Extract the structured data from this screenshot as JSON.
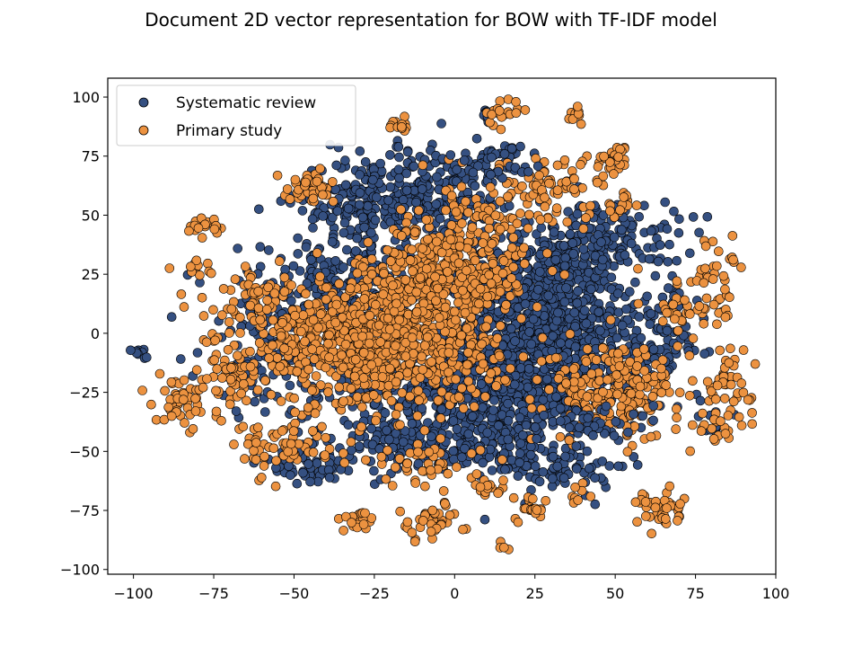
{
  "chart_data": {
    "type": "scatter",
    "title": "Document 2D vector representation for BOW with TF-IDF model",
    "xlabel": "",
    "ylabel": "",
    "xlim": [
      -108,
      100
    ],
    "ylim": [
      -102,
      108
    ],
    "xticks": [
      -100,
      -75,
      -50,
      -25,
      0,
      25,
      50,
      75,
      100
    ],
    "yticks": [
      -100,
      -75,
      -50,
      -25,
      0,
      25,
      50,
      75,
      100
    ],
    "grid": false,
    "legend_position": "upper-left",
    "series": [
      {
        "name": "Systematic review",
        "color": "#355081",
        "clusters": [
          {
            "cx": 28,
            "cy": 5,
            "sx": 12,
            "sy": 20,
            "n": 950
          },
          {
            "cx": 5,
            "cy": -25,
            "sx": 18,
            "sy": 12,
            "n": 520
          },
          {
            "cx": -25,
            "cy": 55,
            "sx": 12,
            "sy": 10,
            "n": 260
          },
          {
            "cx": -5,
            "cy": 60,
            "sx": 10,
            "sy": 10,
            "n": 150
          },
          {
            "cx": 15,
            "cy": 75,
            "sx": 4,
            "sy": 4,
            "n": 30
          },
          {
            "cx": 50,
            "cy": 40,
            "sx": 10,
            "sy": 8,
            "n": 120
          },
          {
            "cx": -15,
            "cy": -48,
            "sx": 15,
            "sy": 6,
            "n": 120
          },
          {
            "cx": 20,
            "cy": -50,
            "sx": 10,
            "sy": 5,
            "n": 90
          },
          {
            "cx": -35,
            "cy": 20,
            "sx": 15,
            "sy": 10,
            "n": 180
          },
          {
            "cx": 55,
            "cy": -10,
            "sx": 8,
            "sy": 12,
            "n": 120
          },
          {
            "cx": -55,
            "cy": -5,
            "sx": 12,
            "sy": 15,
            "n": 120
          },
          {
            "cx": 10,
            "cy": 92,
            "sx": 2,
            "sy": 2,
            "n": 10
          },
          {
            "cx": 68,
            "cy": 0,
            "sx": 4,
            "sy": 12,
            "n": 40
          },
          {
            "cx": -45,
            "cy": -55,
            "sx": 8,
            "sy": 5,
            "n": 50
          },
          {
            "cx": 35,
            "cy": -60,
            "sx": 10,
            "sy": 4,
            "n": 40
          },
          {
            "cx": 80,
            "cy": -35,
            "sx": 3,
            "sy": 3,
            "n": 10
          }
        ]
      },
      {
        "name": "Primary study",
        "color": "#ec9240",
        "clusters": [
          {
            "cx": -25,
            "cy": -5,
            "sx": 20,
            "sy": 13,
            "n": 900
          },
          {
            "cx": -5,
            "cy": 22,
            "sx": 12,
            "sy": 8,
            "n": 320
          },
          {
            "cx": 50,
            "cy": -25,
            "sx": 10,
            "sy": 10,
            "n": 220
          },
          {
            "cx": -45,
            "cy": 62,
            "sx": 4,
            "sy": 3,
            "n": 40
          },
          {
            "cx": -17,
            "cy": 88,
            "sx": 2,
            "sy": 1.5,
            "n": 12
          },
          {
            "cx": 15,
            "cy": 94,
            "sx": 3,
            "sy": 3,
            "n": 20
          },
          {
            "cx": 37,
            "cy": 93,
            "sx": 1.5,
            "sy": 1.5,
            "n": 10
          },
          {
            "cx": 50,
            "cy": 74,
            "sx": 3,
            "sy": 3,
            "n": 25
          },
          {
            "cx": -76,
            "cy": 46,
            "sx": 3,
            "sy": 2,
            "n": 20
          },
          {
            "cx": -85,
            "cy": -28,
            "sx": 4,
            "sy": 5,
            "n": 45
          },
          {
            "cx": 85,
            "cy": -22,
            "sx": 4,
            "sy": 6,
            "n": 40
          },
          {
            "cx": 82,
            "cy": 20,
            "sx": 4,
            "sy": 10,
            "n": 40
          },
          {
            "cx": 82,
            "cy": -40,
            "sx": 3,
            "sy": 4,
            "n": 20
          },
          {
            "cx": 63,
            "cy": -74,
            "sx": 4,
            "sy": 4,
            "n": 40
          },
          {
            "cx": -7,
            "cy": -80,
            "sx": 5,
            "sy": 4,
            "n": 45
          },
          {
            "cx": -30,
            "cy": -80,
            "sx": 3,
            "sy": 3,
            "n": 20
          },
          {
            "cx": 25,
            "cy": -73,
            "sx": 3,
            "sy": 3,
            "n": 20
          },
          {
            "cx": 10,
            "cy": -65,
            "sx": 3,
            "sy": 2,
            "n": 15
          },
          {
            "cx": -55,
            "cy": -48,
            "sx": 7,
            "sy": 6,
            "n": 60
          },
          {
            "cx": -63,
            "cy": 15,
            "sx": 5,
            "sy": 6,
            "n": 40
          },
          {
            "cx": -80,
            "cy": 28,
            "sx": 3,
            "sy": 2,
            "n": 12
          },
          {
            "cx": 20,
            "cy": 55,
            "sx": 12,
            "sy": 8,
            "n": 60
          },
          {
            "cx": 52,
            "cy": 55,
            "sx": 3,
            "sy": 3,
            "n": 15
          },
          {
            "cx": 70,
            "cy": 10,
            "sx": 4,
            "sy": 8,
            "n": 35
          },
          {
            "cx": 33,
            "cy": 65,
            "sx": 8,
            "sy": 6,
            "n": 50
          },
          {
            "cx": 5,
            "cy": 40,
            "sx": 12,
            "sy": 8,
            "n": 80
          },
          {
            "cx": -70,
            "cy": -18,
            "sx": 5,
            "sy": 8,
            "n": 40
          },
          {
            "cx": 15,
            "cy": -90,
            "sx": 1,
            "sy": 1,
            "n": 4
          },
          {
            "cx": 40,
            "cy": -68,
            "sx": 2,
            "sy": 2,
            "n": 8
          },
          {
            "cx": -10,
            "cy": -55,
            "sx": 10,
            "sy": 5,
            "n": 40
          }
        ]
      },
      {
        "name": "",
        "color": "#355081",
        "clusters": [
          {
            "cx": -98,
            "cy": -8,
            "sx": 1.2,
            "sy": 1.5,
            "n": 10
          },
          {
            "cx": 12,
            "cy": 70,
            "sx": 6,
            "sy": 4,
            "n": 20
          },
          {
            "cx": 40,
            "cy": -38,
            "sx": 8,
            "sy": 4,
            "n": 50
          }
        ]
      }
    ]
  }
}
